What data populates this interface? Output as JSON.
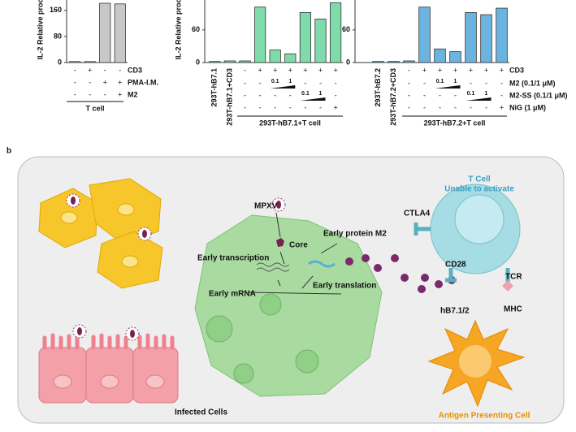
{
  "chart_data": [
    {
      "type": "bar",
      "ylabel": "IL-2 Relative proc",
      "color": "#c8c8c8",
      "categories": [
        null,
        null,
        null,
        null
      ],
      "values": [
        3,
        3,
        182,
        180
      ],
      "ylim": [
        0,
        192
      ],
      "yticks": [
        0,
        80,
        160
      ],
      "conditions": [
        {
          "name": "CD3",
          "values": [
            "-",
            "+",
            "-",
            "-"
          ]
        },
        {
          "name": "PMA-I.M.",
          "values": [
            "-",
            "-",
            "+",
            "+"
          ]
        },
        {
          "name": "M2",
          "values": [
            "-",
            "-",
            "-",
            "+"
          ]
        }
      ],
      "group": "T cell"
    },
    {
      "type": "bar",
      "ylabel": "IL-2 Relative proc",
      "color": "#7fdcaa",
      "categories": [
        "293T-hB7.1",
        "293T-hB7.1+CD3",
        null,
        null,
        null,
        null,
        null,
        null,
        null
      ],
      "values": [
        2,
        3,
        3,
        102,
        23,
        16,
        92,
        80,
        110
      ],
      "ylim": [
        0,
        115
      ],
      "yticks": [
        0,
        60
      ],
      "conditions": [
        {
          "values": [
            null,
            null,
            "-",
            "+",
            "+",
            "+",
            "+",
            "+",
            "+"
          ]
        },
        {
          "values": [
            null,
            null,
            "-",
            "-",
            "0.1",
            "1",
            "-",
            "-",
            "-"
          ]
        },
        {
          "values": [
            null,
            null,
            "-",
            "-",
            "-",
            "-",
            "0.1",
            "1",
            "-"
          ]
        },
        {
          "values": [
            null,
            null,
            "-",
            "-",
            "-",
            "-",
            "-",
            "-",
            "+"
          ]
        }
      ],
      "group": "293T-hB7.1+T cell"
    },
    {
      "type": "bar",
      "color": "#6cb4e0",
      "categories": [
        "293T-hB7.2",
        "293T-hB7.2+CD3",
        null,
        null,
        null,
        null,
        null,
        null,
        null
      ],
      "values": [
        2,
        2,
        3,
        102,
        25,
        20,
        92,
        88,
        100
      ],
      "ylim": [
        0,
        115
      ],
      "yticks": [
        0,
        60
      ],
      "conditions": [
        {
          "name": "CD3",
          "values": [
            null,
            null,
            "-",
            "+",
            "+",
            "+",
            "+",
            "+",
            "+"
          ]
        },
        {
          "name": "M2 (0.1/1 μM)",
          "values": [
            null,
            null,
            "-",
            "-",
            "0.1",
            "1",
            "-",
            "-",
            "-"
          ]
        },
        {
          "name": "M2-SS (0.1/1 μM)",
          "values": [
            null,
            null,
            "-",
            "-",
            "-",
            "-",
            "0.1",
            "1",
            "-"
          ]
        },
        {
          "name": "NiG (1 μM)",
          "values": [
            null,
            null,
            "-",
            "-",
            "-",
            "-",
            "-",
            "-",
            "+"
          ]
        }
      ],
      "group": "293T-hB7.2+T cell"
    }
  ],
  "diagram": {
    "panel": "b",
    "mpxv": "MPXV",
    "core": "Core",
    "transcription": "Early transcription",
    "protein": "Early protein M2",
    "mrna": "Early mRNA",
    "translation": "Early translation",
    "infected": "Infected Cells",
    "tcell": "T Cell",
    "tcell_state": "Unable to activate",
    "ctla4": "CTLA4",
    "cd28": "CD28",
    "tcr": "TCR",
    "hb7": "hB7.1/2",
    "mhc": "MHC",
    "apc": "Antigen Presenting Cell"
  }
}
